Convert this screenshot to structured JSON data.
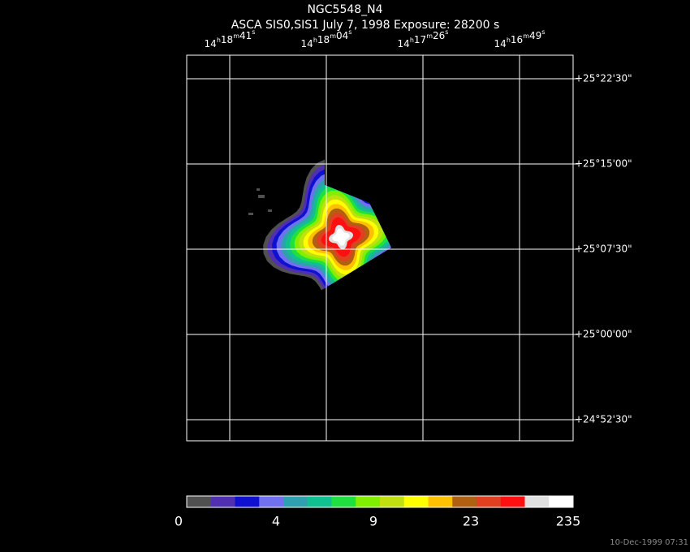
{
  "header": {
    "title": "NGC5548_N4",
    "subtitle": "ASCA SIS0,SIS1 July 7, 1998 Exposure: 28200 s"
  },
  "ra_labels": [
    "14h18m41s",
    "14h18m04s",
    "14h17m26s",
    "14h16m49s"
  ],
  "dec_labels": [
    "+25°22'30\"",
    "+25°15'00\"",
    "+25°07'30\"",
    "+25°00'00\"",
    "+24°52'30\""
  ],
  "colorbar": {
    "colors": [
      "#505050",
      "#5030b0",
      "#1010d0",
      "#7070f0",
      "#30a0b0",
      "#10c090",
      "#20e040",
      "#80f000",
      "#c0e010",
      "#ffff00",
      "#ffc000",
      "#b06010",
      "#e04020",
      "#ff1010",
      "#e0e0e0",
      "#ffffff"
    ],
    "labels": [
      "0",
      "4",
      "9",
      "23",
      "235"
    ]
  },
  "footer": "10-Dec-1999 07:31"
}
